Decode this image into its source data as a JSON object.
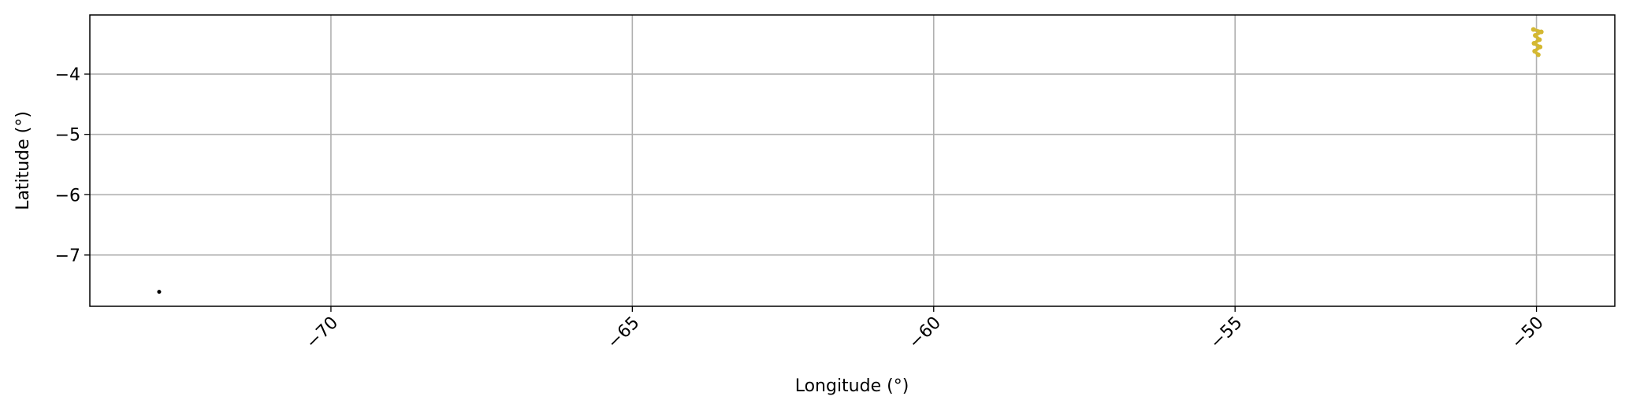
{
  "chart_data": {
    "type": "scatter",
    "title": "",
    "xlabel": "Longitude (°)",
    "ylabel": "Latitude (°)",
    "xlim": [
      -74.0,
      -48.7
    ],
    "ylim": [
      -7.85,
      -3.02
    ],
    "xticks": [
      -70,
      -65,
      -60,
      -55,
      -50
    ],
    "xtick_labels": [
      "−70",
      "−65",
      "−60",
      "−55",
      "−50"
    ],
    "yticks": [
      -4,
      -5,
      -6,
      -7
    ],
    "ytick_labels": [
      "−4",
      "−5",
      "−6",
      "−7"
    ],
    "xtick_rotation_deg": 45,
    "grid": true,
    "legend": "none",
    "series": [
      {
        "color": "#000000",
        "marker": "dot",
        "points": [
          {
            "x": -72.85,
            "y": -7.61
          }
        ]
      },
      {
        "color": "#d4b832",
        "marker": "line-trace",
        "points": [
          {
            "x": -50.05,
            "y": -3.26
          },
          {
            "x": -49.92,
            "y": -3.3
          },
          {
            "x": -50.02,
            "y": -3.36
          },
          {
            "x": -49.95,
            "y": -3.43
          },
          {
            "x": -50.04,
            "y": -3.49
          },
          {
            "x": -49.94,
            "y": -3.55
          },
          {
            "x": -50.03,
            "y": -3.62
          },
          {
            "x": -49.97,
            "y": -3.68
          }
        ]
      }
    ]
  }
}
